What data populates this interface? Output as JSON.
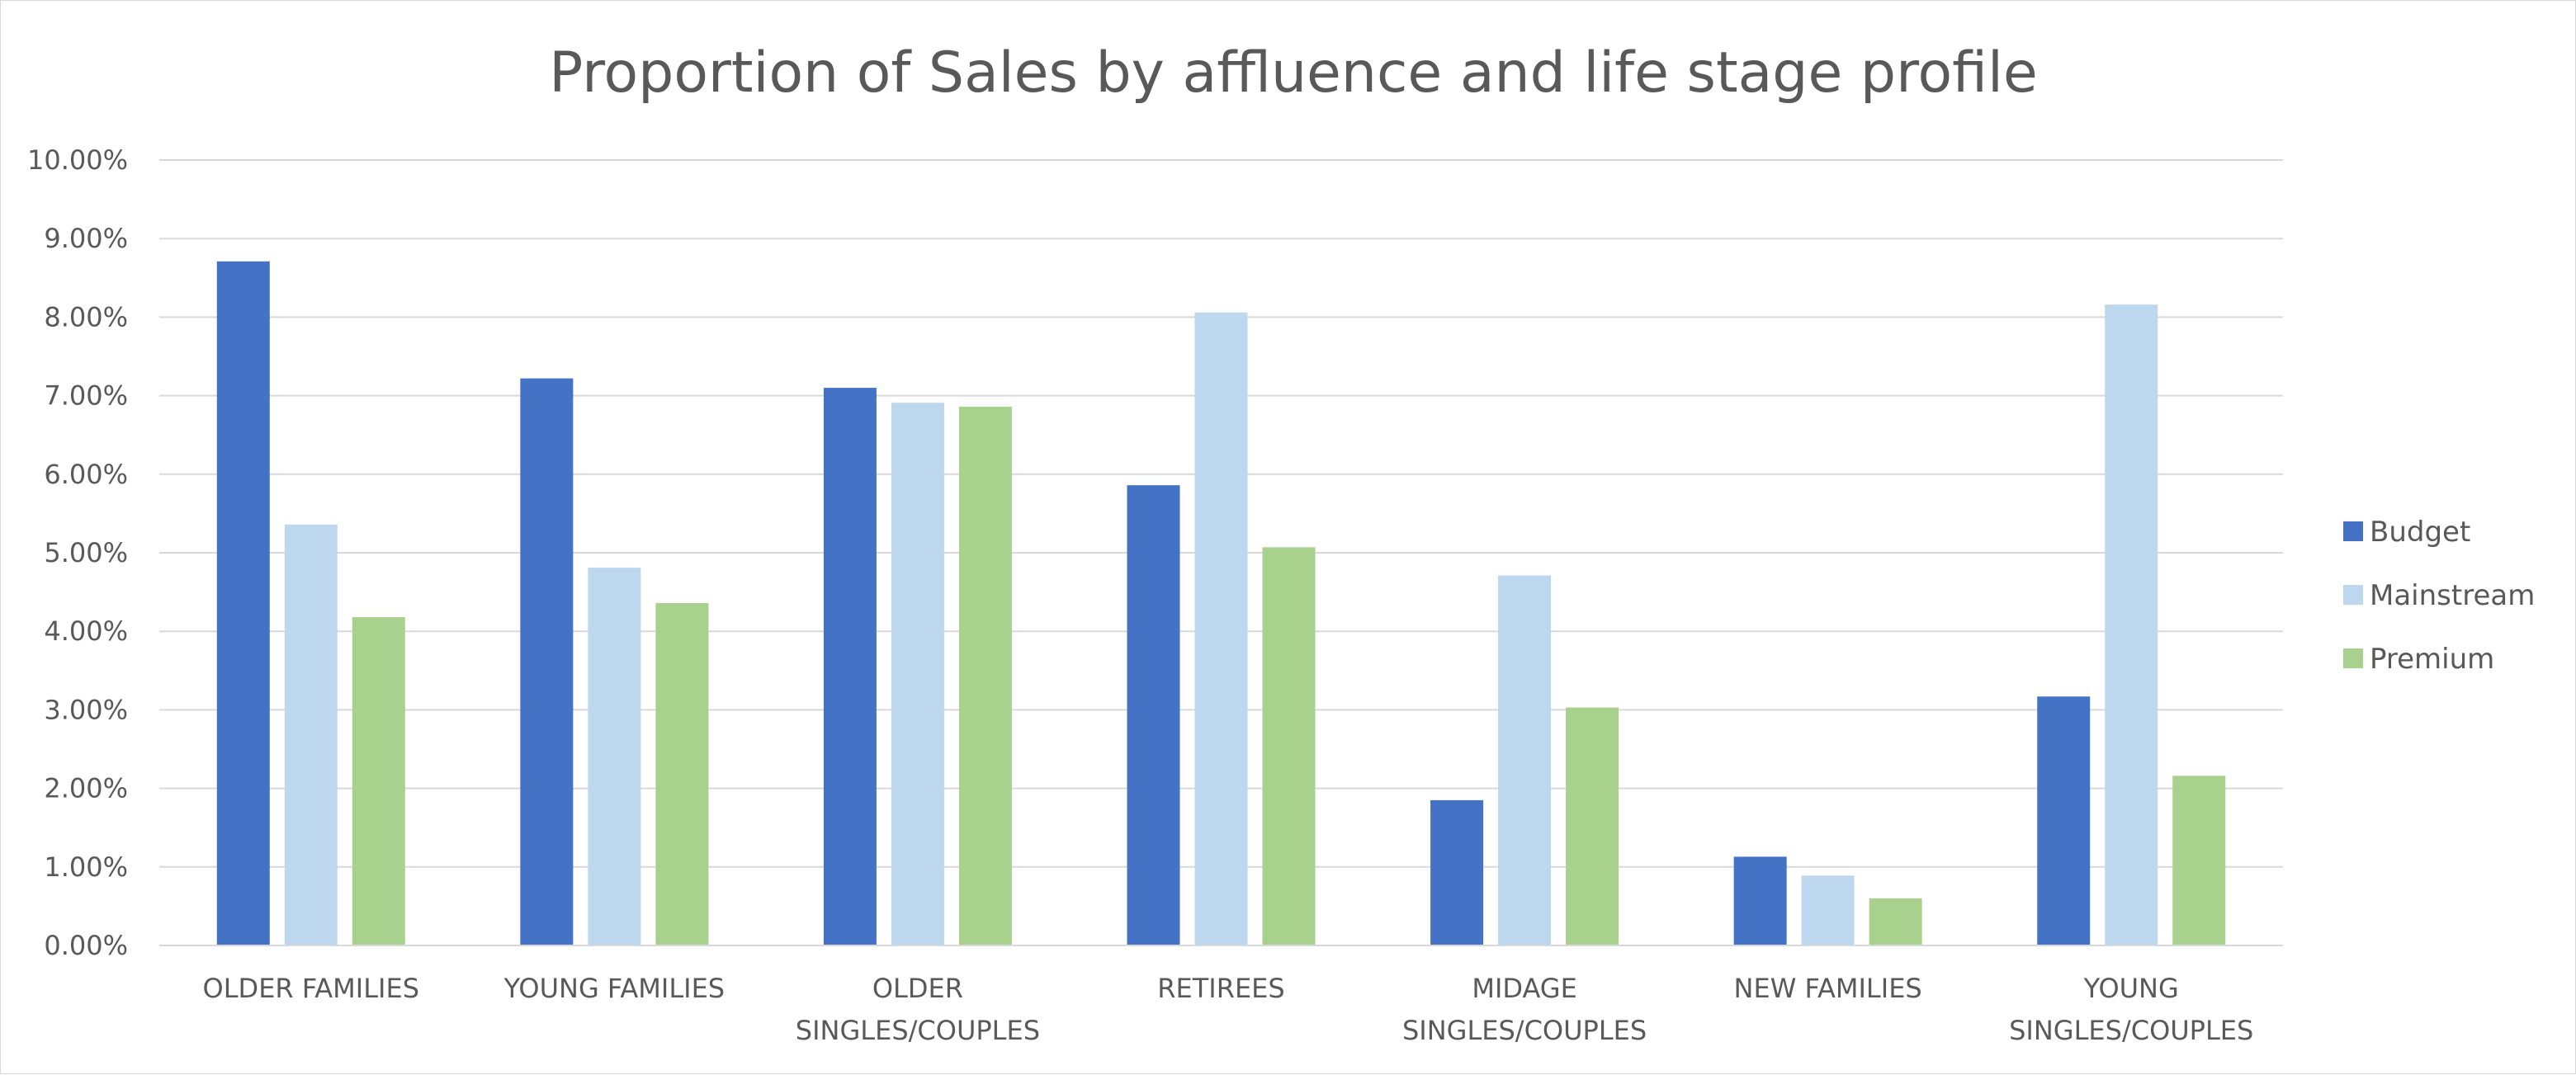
{
  "chart_data": {
    "type": "bar",
    "title": "Proportion of Sales by affluence and life stage profile",
    "xlabel": "",
    "ylabel": "",
    "ylim": [
      0,
      0.1
    ],
    "y_ticks": [
      "0.00%",
      "1.00%",
      "2.00%",
      "3.00%",
      "4.00%",
      "5.00%",
      "6.00%",
      "7.00%",
      "8.00%",
      "9.00%",
      "10.00%"
    ],
    "grid": true,
    "legend_position": "right",
    "categories": [
      [
        "OLDER FAMILIES"
      ],
      [
        "YOUNG FAMILIES"
      ],
      [
        "OLDER",
        "SINGLES/COUPLES"
      ],
      [
        "RETIREES"
      ],
      [
        "MIDAGE",
        "SINGLES/COUPLES"
      ],
      [
        "NEW FAMILIES"
      ],
      [
        "YOUNG",
        "SINGLES/COUPLES"
      ]
    ],
    "series": [
      {
        "name": "Budget",
        "color": "#4472c4",
        "values": [
          0.0871,
          0.0722,
          0.071,
          0.0586,
          0.0185,
          0.0113,
          0.0317
        ]
      },
      {
        "name": "Mainstream",
        "color": "#bdd7ee",
        "values": [
          0.0536,
          0.0481,
          0.0691,
          0.0806,
          0.0471,
          0.0089,
          0.0816
        ]
      },
      {
        "name": "Premium",
        "color": "#a9d18e",
        "values": [
          0.0418,
          0.0436,
          0.0686,
          0.0507,
          0.0303,
          0.006,
          0.0216
        ]
      }
    ]
  }
}
